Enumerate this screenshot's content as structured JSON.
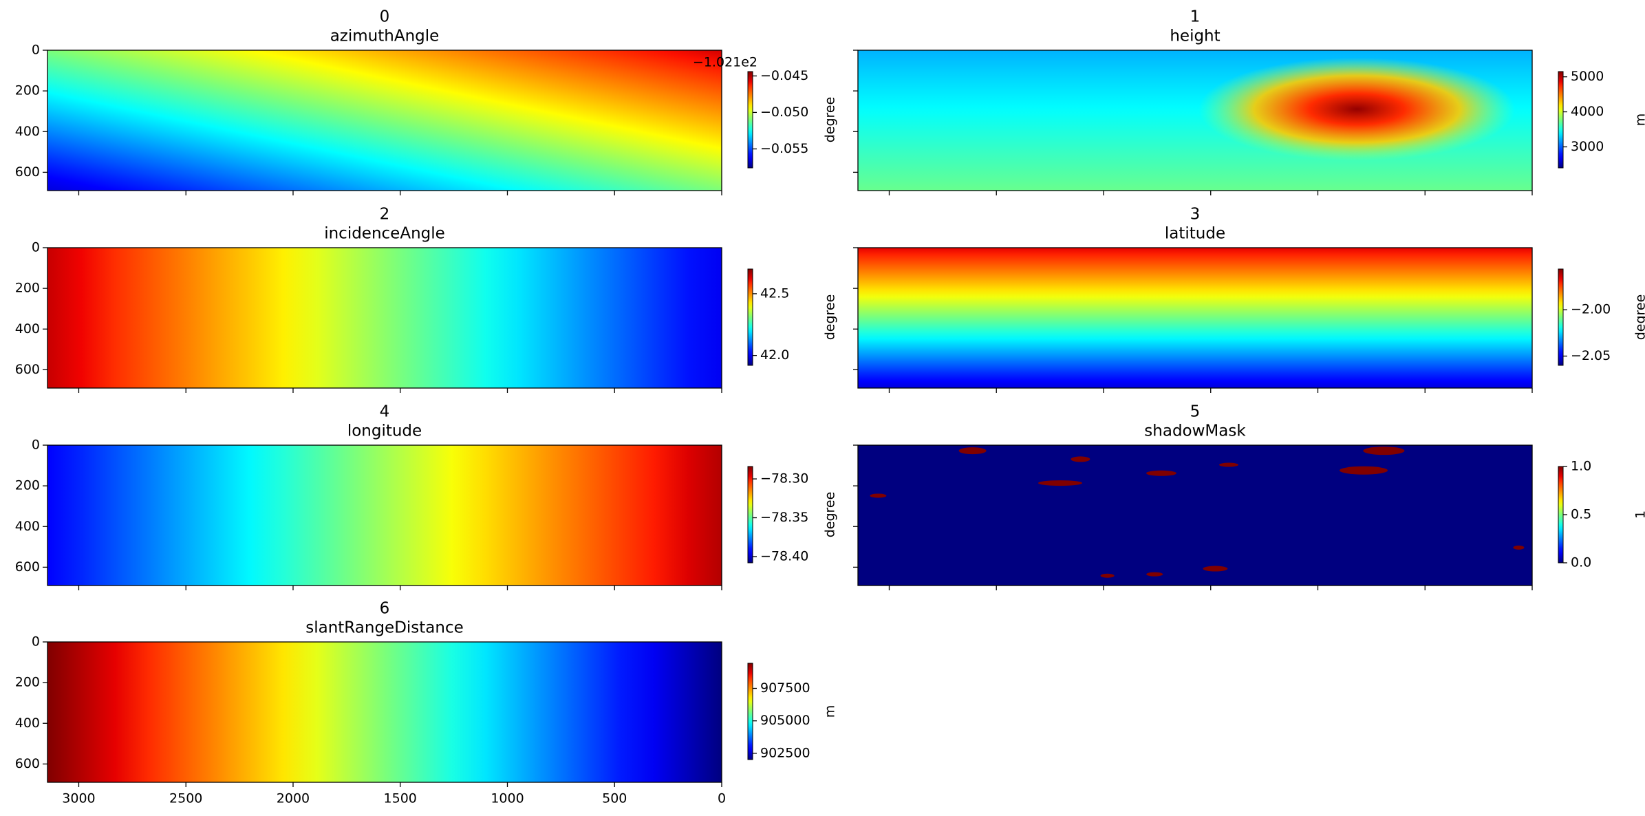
{
  "figure": {
    "sharex": true,
    "sharey": true
  },
  "chart_data": [
    {
      "type": "heatmap",
      "title": "0",
      "subtitle": "azimuthAngle",
      "colormap": "jet",
      "xlim": [
        3146,
        0
      ],
      "ylim": [
        690,
        0
      ],
      "xticks": [
        3000,
        2500,
        2000,
        1500,
        1000,
        500,
        0
      ],
      "yticks": [
        0,
        200,
        400,
        600
      ],
      "clim": [
        -0.0576,
        -0.0444
      ],
      "cticks": [
        {
          "value": -0.045,
          "label": "−0.045"
        },
        {
          "value": -0.05,
          "label": "−0.050"
        },
        {
          "value": -0.055,
          "label": "−0.055"
        }
      ],
      "offset_text": "−1.021e2",
      "colorbar_label": "degree"
    },
    {
      "type": "heatmap",
      "title": "1",
      "subtitle": "height",
      "colormap": "jet",
      "xlim": [
        3146,
        0
      ],
      "ylim": [
        690,
        0
      ],
      "xticks": [
        3000,
        2500,
        2000,
        1500,
        1000,
        500,
        0
      ],
      "yticks": [
        0,
        200,
        400,
        600
      ],
      "clim": [
        2400,
        5150
      ],
      "cticks": [
        5000,
        4000,
        3000
      ],
      "colorbar_label": "m"
    },
    {
      "type": "heatmap",
      "title": "2",
      "subtitle": "incidenceAngle",
      "colormap": "jet",
      "xlim": [
        3146,
        0
      ],
      "ylim": [
        690,
        0
      ],
      "xticks": [
        3000,
        2500,
        2000,
        1500,
        1000,
        500,
        0
      ],
      "yticks": [
        0,
        200,
        400,
        600
      ],
      "clim": [
        41.92,
        42.7
      ],
      "cticks": [
        42.5,
        {
          "value": 42.0,
          "label": "42.0"
        }
      ],
      "colorbar_label": "degree"
    },
    {
      "type": "heatmap",
      "title": "3",
      "subtitle": "latitude",
      "colormap": "jet",
      "xlim": [
        3146,
        0
      ],
      "ylim": [
        690,
        0
      ],
      "xticks": [
        3000,
        2500,
        2000,
        1500,
        1000,
        500,
        0
      ],
      "yticks": [
        0,
        200,
        400,
        600
      ],
      "clim": [
        -2.06,
        -1.956
      ],
      "cticks": [
        {
          "value": -2.0,
          "label": "−2.00"
        },
        {
          "value": -2.05,
          "label": "−2.05"
        }
      ],
      "colorbar_label": "degree"
    },
    {
      "type": "heatmap",
      "title": "4",
      "subtitle": "longitude",
      "colormap": "jet",
      "xlim": [
        3146,
        0
      ],
      "ylim": [
        690,
        0
      ],
      "xticks": [
        3000,
        2500,
        2000,
        1500,
        1000,
        500,
        0
      ],
      "yticks": [
        0,
        200,
        400,
        600
      ],
      "clim": [
        -78.408,
        -78.284
      ],
      "cticks": [
        {
          "value": -78.3,
          "label": "−78.30"
        },
        {
          "value": -78.35,
          "label": "−78.35"
        },
        {
          "value": -78.4,
          "label": "−78.40"
        }
      ],
      "colorbar_label": "degree"
    },
    {
      "type": "heatmap",
      "title": "5",
      "subtitle": "shadowMask",
      "colormap": "jet",
      "xlim": [
        3146,
        0
      ],
      "ylim": [
        690,
        0
      ],
      "xticks": [
        3000,
        2500,
        2000,
        1500,
        1000,
        500,
        0
      ],
      "yticks": [
        0,
        200,
        400,
        600
      ],
      "clim": [
        0,
        1
      ],
      "cticks": [
        {
          "value": 1,
          "label": "1.0"
        },
        {
          "value": 0.5,
          "label": "0.5"
        },
        {
          "value": 0,
          "label": "0.0"
        }
      ],
      "colorbar_label": "1"
    },
    {
      "type": "heatmap",
      "title": "6",
      "subtitle": "slantRangeDistance",
      "colormap": "jet",
      "xlim": [
        3146,
        0
      ],
      "ylim": [
        690,
        0
      ],
      "xticks": [
        3000,
        2500,
        2000,
        1500,
        1000,
        500,
        0
      ],
      "yticks": [
        0,
        200,
        400,
        600
      ],
      "clim": [
        902016,
        909435
      ],
      "cticks": [
        907500,
        905000,
        902500
      ],
      "colorbar_label": "m"
    }
  ]
}
